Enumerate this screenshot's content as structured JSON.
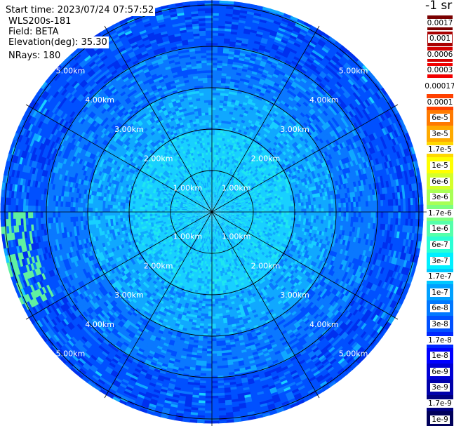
{
  "info": {
    "start_time": "Start time: 2023/07/24 07:57:52",
    "instrument": "WLS200s-181",
    "field": "Field: BETA",
    "elevation": "Elevation(deg): 35.30",
    "nrays": "NRays: 180"
  },
  "colorbar": {
    "unit_label": "-1 sr",
    "labels": [
      "0.0017",
      "0.001",
      "0.0006",
      "0.0003",
      "0.00017",
      "0.0001",
      "6e-5",
      "3e-5",
      "1.7e-5",
      "1e-5",
      "6e-6",
      "3e-6",
      "1.7e-6",
      "1e-6",
      "6e-7",
      "3e-7",
      "1.7e-7",
      "1e-7",
      "6e-8",
      "3e-8",
      "1.7e-8",
      "1e-8",
      "6e-9",
      "3e-9",
      "1.7e-9",
      "1e-9"
    ],
    "colors": [
      "#7a0000",
      "#a80000",
      "#d40000",
      "#f20000",
      "#ffffff",
      "#ff4000",
      "#ff7a00",
      "#ffaa00",
      "#ffd800",
      "#ffff00",
      "#d4ff2a",
      "#a8ff55",
      "#7dff80",
      "#55ffaa",
      "#2affd4",
      "#00f0ff",
      "#00c8ff",
      "#00a0ff",
      "#0078ff",
      "#0050ff",
      "#0028ff",
      "#0000ff",
      "#0000d4",
      "#0000aa",
      "#000080",
      "#00005a"
    ],
    "dark_text_labels": [
      "0.0017",
      "0.001",
      "0.0006",
      "0.0003",
      "0.00017",
      "0.0001",
      "6e-5",
      "3e-5",
      "1.7e-5",
      "1e-5",
      "6e-6",
      "3e-6",
      "1.7e-6",
      "1e-6",
      "6e-7",
      "3e-7"
    ]
  },
  "chart_data": {
    "type": "polar_ppi",
    "field": "BETA",
    "range_rings_km": [
      1,
      2,
      3,
      4,
      5
    ],
    "ring_labels": [
      "1.00km",
      "2.00km",
      "3.00km",
      "4.00km",
      "5.00km"
    ],
    "max_range_km": 5.1,
    "spoke_interval_deg": 30,
    "n_rays": 180,
    "elevation_deg": 35.3,
    "dominant_beta_by_range": [
      {
        "range_km": 0.5,
        "beta": "1e-7"
      },
      {
        "range_km": 1.5,
        "beta": "1e-7"
      },
      {
        "range_km": 2.5,
        "beta": "6e-8"
      },
      {
        "range_km": 3.5,
        "beta": "3e-8"
      },
      {
        "range_km": 4.5,
        "beta": "1.7e-8"
      },
      {
        "range_km": 5.0,
        "beta": "1.7e-8"
      }
    ]
  }
}
